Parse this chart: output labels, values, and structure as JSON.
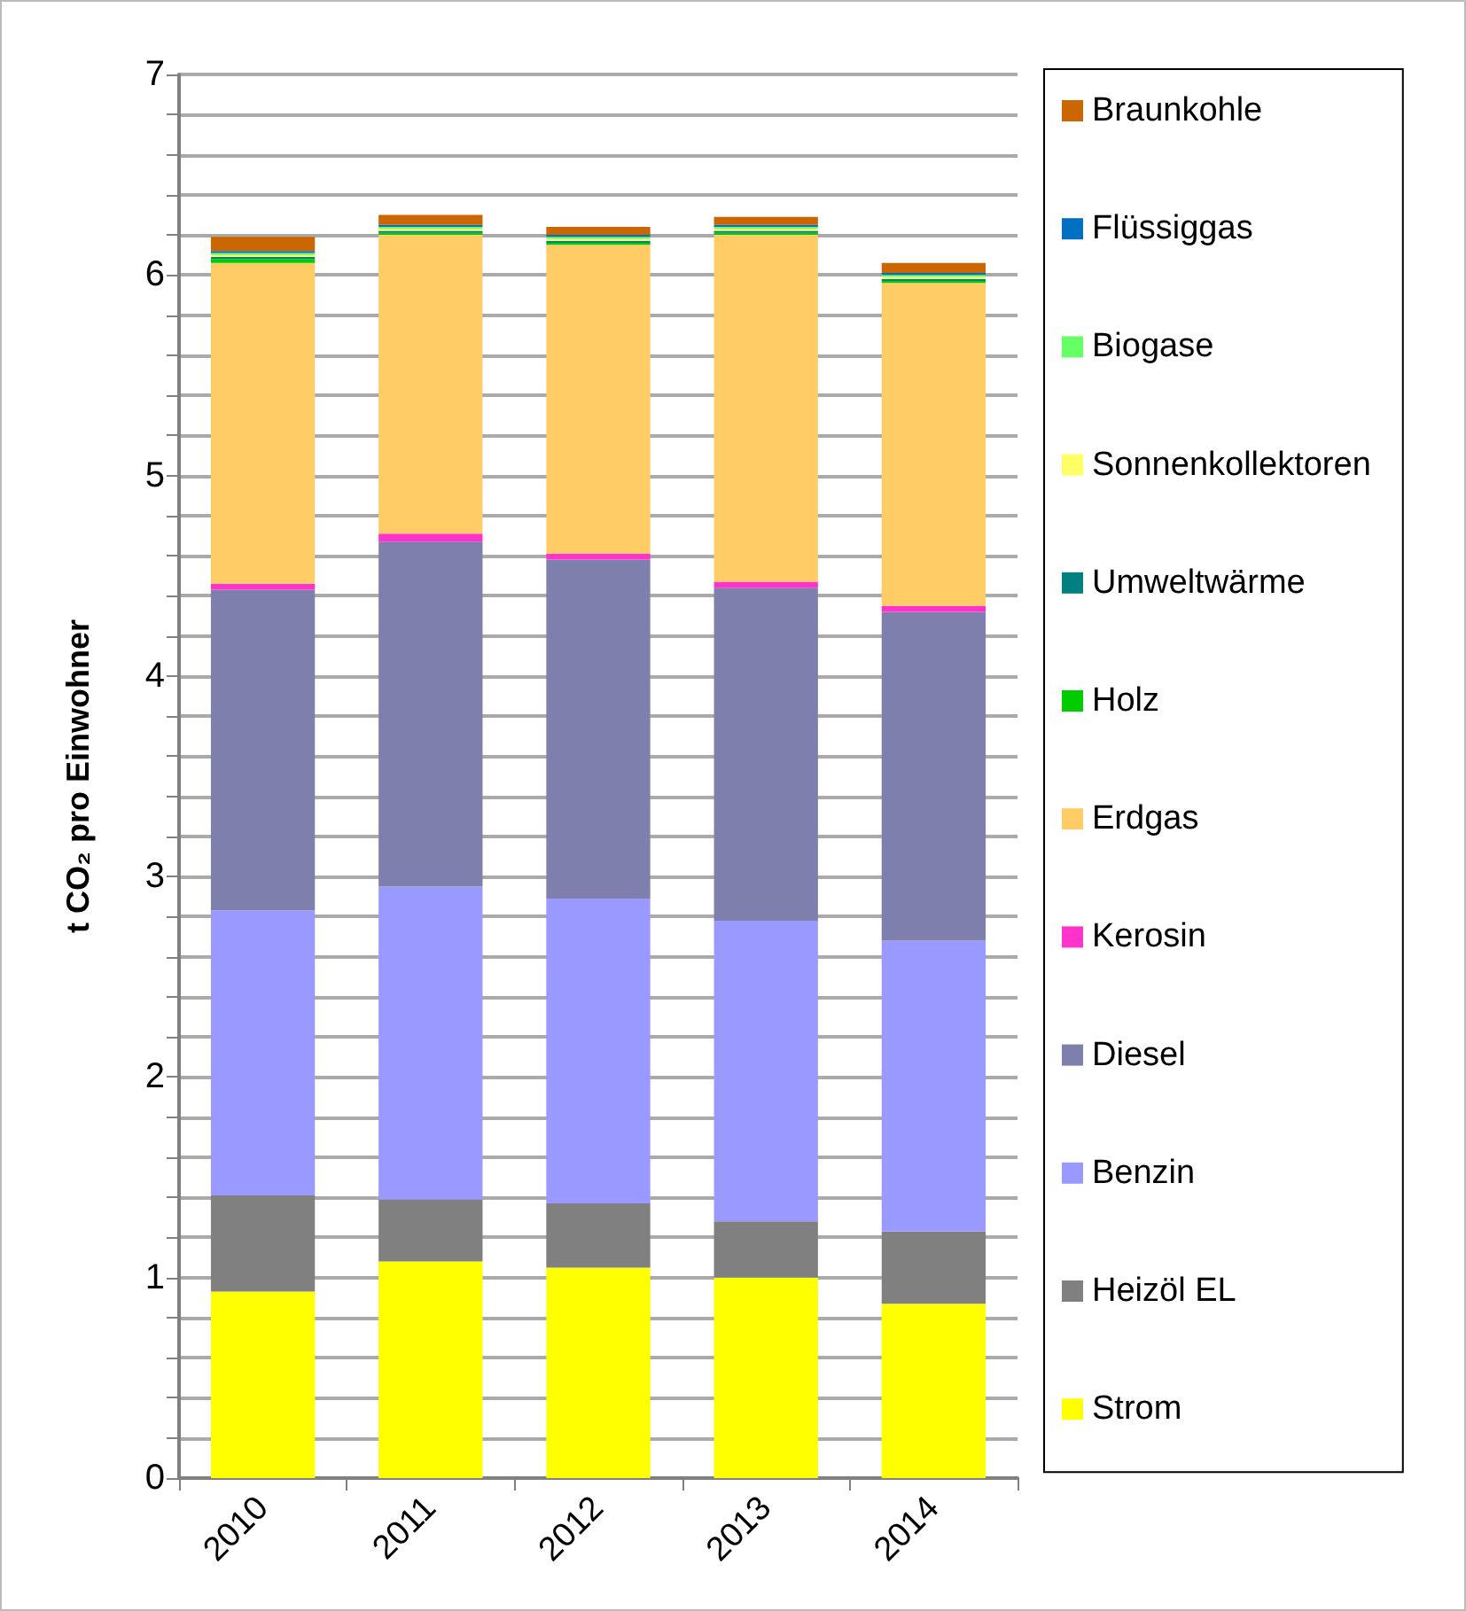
{
  "chart_data": {
    "type": "bar",
    "stacked": true,
    "ylabel": "t CO₂ pro Einwohner",
    "categories": [
      "2010",
      "2011",
      "2012",
      "2013",
      "2014"
    ],
    "series": [
      {
        "name": "Strom",
        "color": "#ffff00",
        "values": [
          0.93,
          1.08,
          1.05,
          1.0,
          0.87
        ]
      },
      {
        "name": "Heizöl EL",
        "color": "#808080",
        "values": [
          0.48,
          0.31,
          0.32,
          0.28,
          0.36
        ]
      },
      {
        "name": "Benzin",
        "color": "#9999ff",
        "values": [
          1.42,
          1.56,
          1.52,
          1.5,
          1.45
        ]
      },
      {
        "name": "Diesel",
        "color": "#7f7fad",
        "values": [
          1.6,
          1.72,
          1.69,
          1.66,
          1.64
        ]
      },
      {
        "name": "Kerosin",
        "color": "#ff33cc",
        "values": [
          0.03,
          0.04,
          0.03,
          0.03,
          0.03
        ]
      },
      {
        "name": "Erdgas",
        "color": "#ffcc66",
        "values": [
          1.6,
          1.49,
          1.54,
          1.73,
          1.61
        ]
      },
      {
        "name": "Holz",
        "color": "#00cc00",
        "values": [
          0.02,
          0.01,
          0.01,
          0.01,
          0.01
        ]
      },
      {
        "name": "Umweltwärme",
        "color": "#008080",
        "values": [
          0.01,
          0.01,
          0.01,
          0.01,
          0.01
        ]
      },
      {
        "name": "Sonnenkollektoren",
        "color": "#ffff66",
        "values": [
          0.01,
          0.01,
          0.01,
          0.01,
          0.01
        ]
      },
      {
        "name": "Biogase",
        "color": "#66ff66",
        "values": [
          0.01,
          0.01,
          0.01,
          0.01,
          0.01
        ]
      },
      {
        "name": "Flüssiggas",
        "color": "#0070c0",
        "values": [
          0.01,
          0.01,
          0.01,
          0.01,
          0.01
        ]
      },
      {
        "name": "Braunkohle",
        "color": "#cc6600",
        "values": [
          0.07,
          0.05,
          0.04,
          0.04,
          0.05
        ]
      }
    ],
    "ylim": [
      0,
      7
    ],
    "yticks": [
      0,
      {
        "value": 0.2,
        "label": null
      },
      {
        "value": 0.4,
        "label": null
      },
      {
        "value": 0.6,
        "label": null
      },
      {
        "value": 0.8,
        "label": null
      },
      1,
      {
        "value": 1.2,
        "label": null
      },
      {
        "value": 1.4,
        "label": null
      },
      {
        "value": 1.6,
        "label": null
      },
      {
        "value": 1.8,
        "label": null
      },
      2,
      {
        "value": 2.2,
        "label": null
      },
      {
        "value": 2.4,
        "label": null
      },
      {
        "value": 2.6,
        "label": null
      },
      {
        "value": 2.8,
        "label": null
      },
      3,
      {
        "value": 3.2,
        "label": null
      },
      {
        "value": 3.4,
        "label": null
      },
      {
        "value": 3.6,
        "label": null
      },
      {
        "value": 3.8,
        "label": null
      },
      4,
      {
        "value": 4.2,
        "label": null
      },
      {
        "value": 4.4,
        "label": null
      },
      {
        "value": 4.6,
        "label": null
      },
      {
        "value": 4.8,
        "label": null
      },
      5,
      {
        "value": 5.2,
        "label": null
      },
      {
        "value": 5.4,
        "label": null
      },
      {
        "value": 5.6,
        "label": null
      },
      {
        "value": 5.8,
        "label": null
      },
      6,
      {
        "value": 6.2,
        "label": null
      },
      {
        "value": 6.4,
        "label": null
      },
      {
        "value": 6.6,
        "label": null
      },
      {
        "value": 6.8,
        "label": null
      },
      7
    ],
    "grid": "y",
    "legend": "right"
  }
}
